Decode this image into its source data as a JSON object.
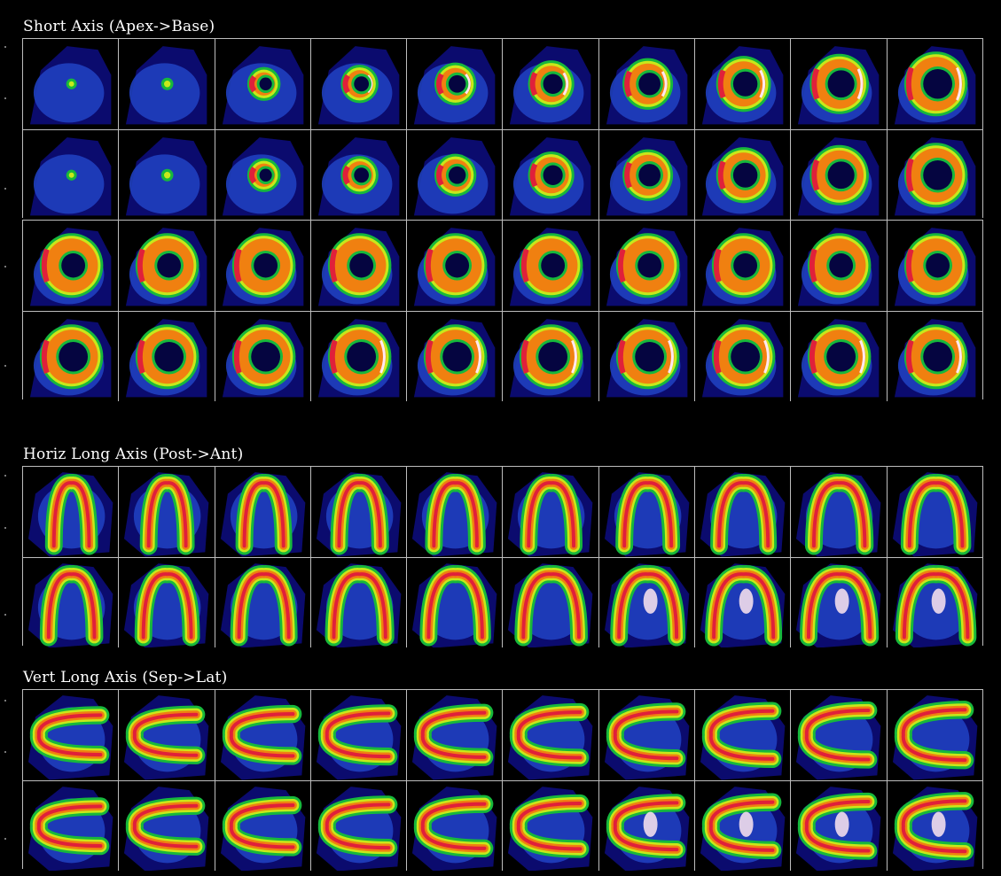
{
  "sections": [
    {
      "id": "short-axis",
      "title": "Short Axis (Apex->Base)",
      "rows_per_block": 2,
      "blocks": 2,
      "columns": 10,
      "shape": "ring"
    },
    {
      "id": "horiz-long-axis",
      "title": "Horiz Long Axis (Post->Ant)",
      "rows_per_block": 2,
      "blocks": 1,
      "columns": 10,
      "shape": "horseshoe-down"
    },
    {
      "id": "vert-long-axis",
      "title": "Vert Long Axis (Sep->Lat)",
      "rows_per_block": 2,
      "blocks": 1,
      "columns": 10,
      "shape": "horseshoe-left"
    }
  ],
  "colors": {
    "background": "#000000",
    "grid": "#bdbdbd",
    "low": "#0b0b6e",
    "mid_low": "#1f3fbf",
    "mid": "#17b83c",
    "mid_high": "#c8e81a",
    "high": "#f08010",
    "peak": "#e0203a",
    "max": "#ffe8f0"
  }
}
